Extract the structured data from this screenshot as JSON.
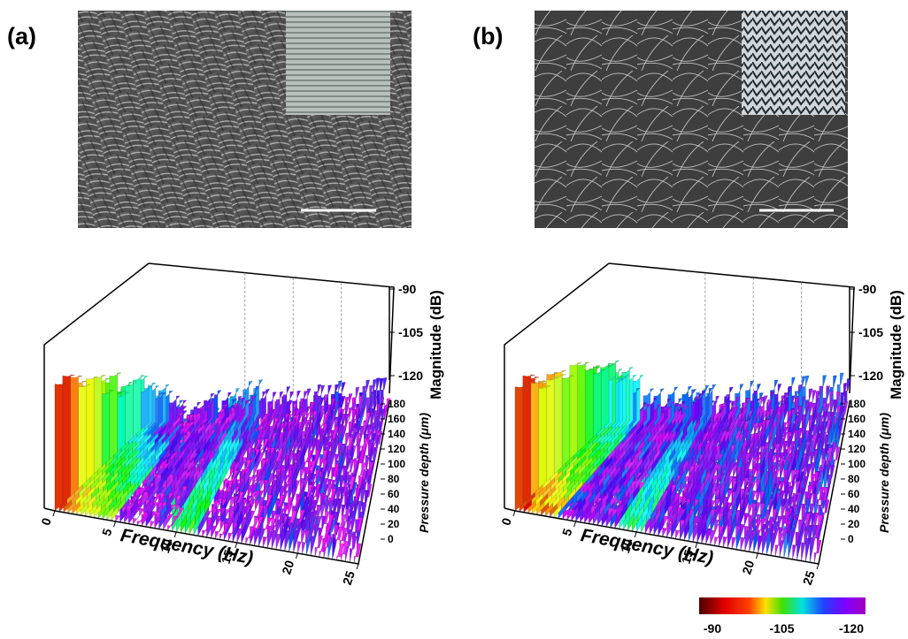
{
  "panels": [
    {
      "label": "(a)",
      "plot": {
        "frequency_title": "Frequency (Hz)",
        "frequency_ticks": [
          0,
          5,
          10,
          15,
          20,
          25
        ],
        "magnitude_title": "Magnitude (dB)",
        "magnitude_ticks": [
          -90,
          -105,
          -120
        ],
        "depth_title": "Pressure depth (μm)",
        "depth_ticks": [
          0,
          20,
          40,
          60,
          80,
          100,
          120,
          140,
          160,
          180
        ]
      }
    },
    {
      "label": "(b)",
      "plot": {
        "frequency_title": "Frequency (Hz)",
        "frequency_ticks": [
          0,
          5,
          10,
          15,
          20,
          25
        ],
        "magnitude_title": "Magnitude (dB)",
        "magnitude_ticks": [
          -90,
          -105,
          -120
        ],
        "depth_title": "Pressure depth (μm)",
        "depth_ticks": [
          0,
          20,
          40,
          60,
          80,
          100,
          120,
          140,
          160,
          180
        ]
      }
    }
  ],
  "colorbar": {
    "ticks": [
      -90,
      -105,
      -120
    ]
  }
}
